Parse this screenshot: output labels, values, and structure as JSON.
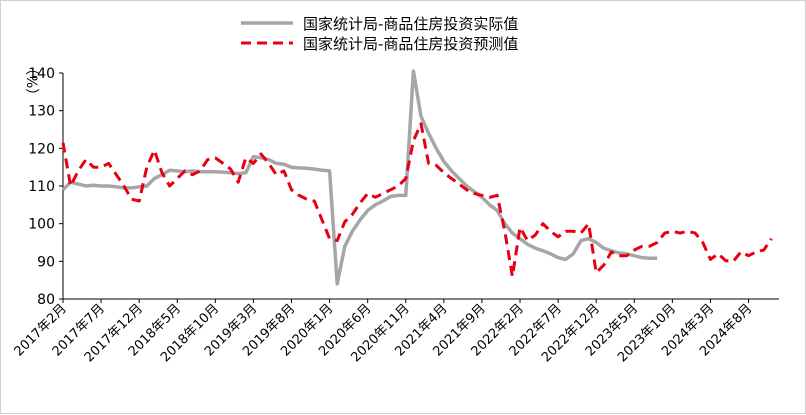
{
  "chart_data": {
    "type": "line",
    "unit": "（%）",
    "ylim": [
      80,
      140
    ],
    "yticks": [
      80,
      90,
      100,
      110,
      120,
      130,
      140
    ],
    "x_tick_labels": [
      "2017年2月",
      "2017年7月",
      "2017年12月",
      "2018年5月",
      "2018年10月",
      "2019年3月",
      "2019年8月",
      "2020年1月",
      "2020年6月",
      "2020年11月",
      "2021年4月",
      "2021年9月",
      "2022年2月",
      "2022年7月",
      "2022年12月",
      "2023年5月",
      "2023年10月",
      "2024年3月",
      "2024年8月"
    ],
    "x_start": "2017年2月",
    "grid": false,
    "legend_position": "top-center",
    "series": [
      {
        "name": "国家统计局-商品住房投资实际值",
        "color": "#a6a6a6",
        "style": "solid",
        "values": [
          109,
          111,
          110.5,
          110,
          110.2,
          110,
          110,
          109.8,
          109.5,
          109.5,
          109.8,
          110,
          112,
          113,
          114.2,
          114,
          113.8,
          114,
          113.8,
          113.8,
          113.8,
          113.7,
          113.5,
          113.3,
          113.5,
          117.8,
          117.5,
          117,
          116,
          115.8,
          115,
          114.8,
          114.7,
          114.5,
          114.2,
          114,
          84,
          94,
          98,
          101,
          103.5,
          105,
          106,
          107.2,
          107.5,
          107.5,
          140.5,
          128.5,
          124,
          120,
          116.5,
          114,
          112,
          110,
          108.5,
          107,
          105,
          103.5,
          100,
          97.5,
          96,
          94.5,
          93.5,
          92.8,
          92,
          91,
          90.5,
          92,
          95.5,
          96,
          95,
          93.5,
          92.8,
          92.2,
          92,
          91.5,
          91,
          90.8,
          90.8
        ]
      },
      {
        "name": "国家统计局-商品住房投资预测值",
        "color": "#e60012",
        "style": "dashed",
        "values": [
          121.5,
          110,
          114,
          117,
          115,
          115,
          116,
          113,
          110,
          106.5,
          106,
          115,
          119.5,
          113.5,
          110,
          112,
          114,
          113,
          114,
          117,
          117.5,
          116,
          114.5,
          111,
          117.5,
          116,
          118.5,
          116,
          113,
          114,
          109,
          107.5,
          106.5,
          106,
          101,
          96,
          95.5,
          100.5,
          102.5,
          105.5,
          108,
          107,
          108,
          109,
          110,
          112,
          122,
          126.5,
          116,
          115.5,
          113.5,
          112,
          110.5,
          109,
          108,
          107.5,
          107,
          107.5,
          98,
          86,
          99,
          95.5,
          97,
          100,
          98,
          96.5,
          98,
          98,
          97.5,
          100,
          87,
          89,
          92.5,
          91.5,
          91.5,
          93,
          94,
          94,
          95,
          97.5,
          98,
          97.5,
          98,
          97.5,
          95,
          90.5,
          92,
          90.2,
          90,
          92.5,
          91.5,
          92.5,
          93,
          96
        ]
      }
    ]
  }
}
